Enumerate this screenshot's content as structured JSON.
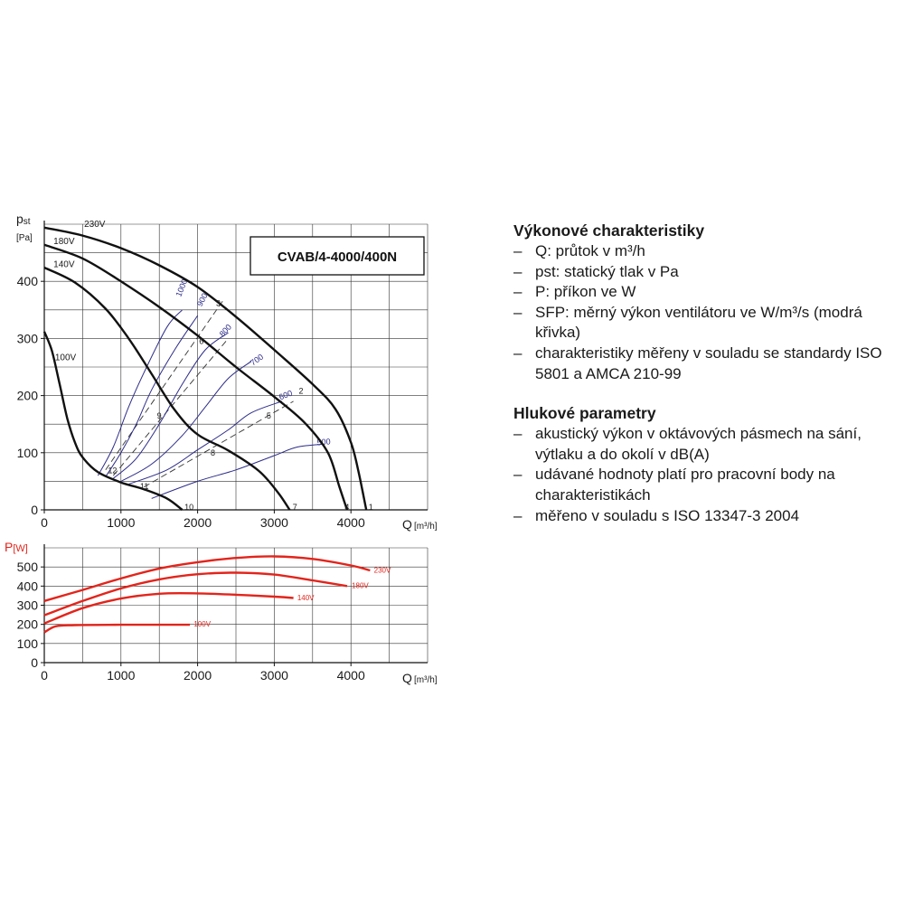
{
  "model": "CVAB/4-4000/400N",
  "chart_data": [
    {
      "type": "line",
      "ylabel_main": "p",
      "ylabel_sub": "st",
      "ylabel_unit": "[Pa]",
      "xlabel": "Q",
      "xlabel_unit": "[m³/h]",
      "xlim": [
        0,
        5000
      ],
      "ylim": [
        0,
        500
      ],
      "xticks": [
        "0",
        "1000",
        "2000",
        "3000",
        "4000"
      ],
      "yticks": [
        "0",
        "100",
        "200",
        "300",
        "400"
      ],
      "grid": true,
      "series": [
        {
          "name": "230V",
          "points": [
            [
              0,
              494
            ],
            [
              500,
              480
            ],
            [
              1000,
              458
            ],
            [
              1500,
              428
            ],
            [
              2000,
              390
            ],
            [
              2500,
              338
            ],
            [
              3000,
              280
            ],
            [
              3500,
              220
            ],
            [
              3800,
              176
            ],
            [
              4000,
              118
            ],
            [
              4100,
              66
            ],
            [
              4200,
              0
            ]
          ]
        },
        {
          "name": "180V",
          "points": [
            [
              0,
              464
            ],
            [
              500,
              440
            ],
            [
              1000,
              400
            ],
            [
              1500,
              355
            ],
            [
              2000,
              305
            ],
            [
              2500,
              250
            ],
            [
              3000,
              198
            ],
            [
              3400,
              152
            ],
            [
              3700,
              100
            ],
            [
              3850,
              40
            ],
            [
              3950,
              0
            ]
          ]
        },
        {
          "name": "140V",
          "points": [
            [
              0,
              424
            ],
            [
              400,
              398
            ],
            [
              800,
              352
            ],
            [
              1100,
              300
            ],
            [
              1400,
              238
            ],
            [
              1700,
              175
            ],
            [
              2000,
              132
            ],
            [
              2400,
              104
            ],
            [
              2800,
              68
            ],
            [
              3050,
              30
            ],
            [
              3200,
              0
            ]
          ]
        },
        {
          "name": "100V",
          "points": [
            [
              0,
              312
            ],
            [
              100,
              278
            ],
            [
              200,
              220
            ],
            [
              300,
              160
            ],
            [
              400,
              118
            ],
            [
              500,
              92
            ],
            [
              700,
              66
            ],
            [
              1000,
              48
            ],
            [
              1300,
              36
            ],
            [
              1600,
              20
            ],
            [
              1800,
              0
            ]
          ]
        }
      ],
      "sfp_curves": [
        {
          "name": "1000",
          "points": [
            [
              700,
              60
            ],
            [
              900,
              110
            ],
            [
              1100,
              180
            ],
            [
              1300,
              240
            ],
            [
              1600,
              320
            ],
            [
              1800,
              350
            ]
          ]
        },
        {
          "name": "900",
          "points": [
            [
              800,
              58
            ],
            [
              1000,
              100
            ],
            [
              1200,
              150
            ],
            [
              1400,
              210
            ],
            [
              1700,
              280
            ],
            [
              2000,
              340
            ]
          ]
        },
        {
          "name": "800",
          "points": [
            [
              900,
              55
            ],
            [
              1200,
              90
            ],
            [
              1500,
              150
            ],
            [
              1800,
              220
            ],
            [
              2100,
              280
            ],
            [
              2400,
              310
            ]
          ]
        },
        {
          "name": "700",
          "points": [
            [
              1000,
              50
            ],
            [
              1400,
              80
            ],
            [
              1800,
              130
            ],
            [
              2100,
              180
            ],
            [
              2400,
              230
            ],
            [
              2700,
              260
            ]
          ]
        },
        {
          "name": "600",
          "points": [
            [
              1100,
              45
            ],
            [
              1600,
              70
            ],
            [
              2000,
              105
            ],
            [
              2400,
              140
            ],
            [
              2700,
              170
            ],
            [
              3100,
              190
            ]
          ]
        },
        {
          "name": "500",
          "points": [
            [
              1400,
              20
            ],
            [
              2000,
              50
            ],
            [
              2500,
              70
            ],
            [
              3000,
              95
            ],
            [
              3300,
              110
            ],
            [
              3650,
              115
            ]
          ]
        }
      ],
      "operating_lines": [
        {
          "points": [
            [
              800,
              70
            ],
            [
              2350,
              370
            ]
          ]
        },
        {
          "points": [
            [
              900,
              60
            ],
            [
              2400,
              300
            ]
          ]
        },
        {
          "points": [
            [
              1300,
              40
            ],
            [
              3250,
              190
            ]
          ]
        }
      ],
      "operating_points": [
        "1",
        "2",
        "3",
        "4",
        "5",
        "6",
        "7",
        "8",
        "9",
        "10",
        "11",
        "12"
      ]
    },
    {
      "type": "line",
      "ylabel_main": "P",
      "ylabel_unit": "[W]",
      "xlabel": "Q",
      "xlabel_unit": "[m³/h]",
      "xlim": [
        0,
        5000
      ],
      "ylim": [
        0,
        600
      ],
      "xticks": [
        "0",
        "1000",
        "2000",
        "3000",
        "4000"
      ],
      "yticks": [
        "0",
        "100",
        "200",
        "300",
        "400",
        "500"
      ],
      "grid": true,
      "series": [
        {
          "name": "230V",
          "points": [
            [
              0,
              322
            ],
            [
              500,
              380
            ],
            [
              1000,
              440
            ],
            [
              1500,
              492
            ],
            [
              2000,
              525
            ],
            [
              2500,
              547
            ],
            [
              3000,
              555
            ],
            [
              3500,
              542
            ],
            [
              4000,
              508
            ],
            [
              4250,
              482
            ]
          ]
        },
        {
          "name": "180V",
          "points": [
            [
              0,
              248
            ],
            [
              500,
              322
            ],
            [
              1000,
              388
            ],
            [
              1500,
              435
            ],
            [
              2000,
              462
            ],
            [
              2500,
              470
            ],
            [
              3000,
              460
            ],
            [
              3500,
              430
            ],
            [
              3950,
              400
            ]
          ]
        },
        {
          "name": "140V",
          "points": [
            [
              0,
              205
            ],
            [
              500,
              285
            ],
            [
              1000,
              335
            ],
            [
              1500,
              360
            ],
            [
              2000,
              362
            ],
            [
              2500,
              355
            ],
            [
              3000,
              345
            ],
            [
              3250,
              338
            ]
          ]
        },
        {
          "name": "100V",
          "points": [
            [
              0,
              158
            ],
            [
              150,
              190
            ],
            [
              400,
              196
            ],
            [
              1000,
              198
            ],
            [
              1500,
              198
            ],
            [
              1900,
              198
            ]
          ]
        }
      ]
    }
  ],
  "legend": {
    "section1_title": "Výkonové charakteristiky",
    "section1_items": [
      "Q: průtok v m³/h",
      "pst: statický tlak v Pa",
      "P: příkon ve W",
      "SFP: měrný výkon ventilátoru ve W/m³/s (modrá křivka)",
      "charakteristiky měřeny v souladu se standardy ISO 5801 a AMCA 210-99"
    ],
    "section2_title": "Hlukové parametry",
    "section2_items": [
      "akustický výkon v oktávových pásmech na sání, výtlaku a do okolí v dB(A)",
      "udávané hodnoty platí pro pracovní body na charakteristikách",
      "měřeno v souladu s ISO 13347-3 2004"
    ]
  }
}
